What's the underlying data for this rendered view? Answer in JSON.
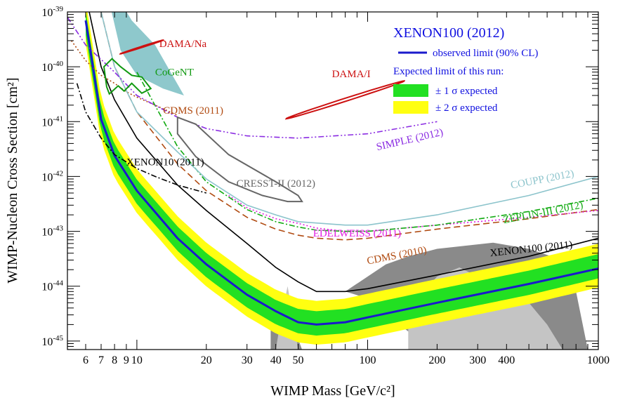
{
  "chart_data": {
    "type": "line",
    "title": "",
    "xlabel": "WIMP Mass [GeV/c²]",
    "ylabel": "WIMP-Nucleon Cross Section [cm²]",
    "xscale": "log",
    "yscale": "log",
    "xlim": [
      5,
      1000
    ],
    "ylim": [
      7e-46,
      1e-39
    ],
    "x_tick_labels": [
      {
        "x": 6,
        "label": "6"
      },
      {
        "x": 7,
        "label": "7"
      },
      {
        "x": 8,
        "label": "8"
      },
      {
        "x": 9,
        "label": "9"
      },
      {
        "x": 10,
        "label": "10"
      },
      {
        "x": 20,
        "label": "20"
      },
      {
        "x": 30,
        "label": "30"
      },
      {
        "x": 40,
        "label": "40"
      },
      {
        "x": 50,
        "label": "50"
      },
      {
        "x": 100,
        "label": "100"
      },
      {
        "x": 200,
        "label": "200"
      },
      {
        "x": 300,
        "label": "300"
      },
      {
        "x": 400,
        "label": "400"
      },
      {
        "x": 1000,
        "label": "1000"
      }
    ],
    "y_tick_exponents": [
      -45,
      -44,
      -43,
      -42,
      -41,
      -40,
      -39
    ],
    "legend": {
      "position": "top-right",
      "title": "XENON100 (2012)",
      "observed_label": "observed limit (90% CL)",
      "expected_header": "Expected limit of this run:",
      "one_sigma_label": "± 1 σ expected",
      "two_sigma_label": "± 2 σ expected"
    },
    "colors": {
      "observed": "#1a1acc",
      "one_sigma": "#22e022",
      "two_sigma": "#ffff11",
      "dama": "#cc1111",
      "cogent": "#119911",
      "cogent_fill": "#8ec8cc",
      "cdms": "#b04a10",
      "simple": "#8a2be2",
      "xenon10": "#000000",
      "cresst": "#666666",
      "coupp": "#8cc4cc",
      "zeplin": "#11aa11",
      "edelweiss": "#e020e0",
      "xenon100_2011": "#000000",
      "theory_dark": "#8a8a8a",
      "theory_light": "#c4c4c4"
    },
    "series": [
      {
        "name": "XENON100 (2012)",
        "style": "solid-thick",
        "color_key": "observed",
        "points": [
          [
            6,
            7e-40
          ],
          [
            7,
            1.1e-41
          ],
          [
            8,
            2.4e-42
          ],
          [
            10,
            5.5e-43
          ],
          [
            15,
            7.5e-44
          ],
          [
            20,
            2.5e-44
          ],
          [
            30,
            7e-45
          ],
          [
            40,
            3.5e-45
          ],
          [
            50,
            2.2e-45
          ],
          [
            60,
            2e-45
          ],
          [
            80,
            2.2e-45
          ],
          [
            100,
            2.7e-45
          ],
          [
            200,
            5e-45
          ],
          [
            500,
            1.1e-44
          ],
          [
            1000,
            2.1e-44
          ]
        ]
      },
      {
        "name": "XENON100 (2011)",
        "style": "solid",
        "color_key": "xenon100_2011",
        "points": [
          [
            6,
            2e-39
          ],
          [
            7,
            1e-40
          ],
          [
            8,
            2.5e-41
          ],
          [
            10,
            5e-42
          ],
          [
            15,
            7e-43
          ],
          [
            20,
            2.4e-43
          ],
          [
            30,
            6e-44
          ],
          [
            40,
            2.2e-44
          ],
          [
            50,
            1.2e-44
          ],
          [
            60,
            8e-45
          ],
          [
            80,
            8e-45
          ],
          [
            100,
            9e-45
          ],
          [
            200,
            1.6e-44
          ],
          [
            500,
            3.5e-44
          ],
          [
            1000,
            7.5e-44
          ]
        ]
      },
      {
        "name": "CDMS (2010)",
        "style": "dash",
        "color_key": "cdms",
        "points": [
          [
            7,
            1e-39
          ],
          [
            8,
            1e-40
          ],
          [
            10,
            1.5e-41
          ],
          [
            15,
            1.7e-42
          ],
          [
            20,
            5.5e-43
          ],
          [
            30,
            1.8e-43
          ],
          [
            40,
            1.1e-43
          ],
          [
            50,
            8.5e-44
          ],
          [
            60,
            7.5e-44
          ],
          [
            80,
            7e-44
          ],
          [
            100,
            7.5e-44
          ],
          [
            200,
            1.1e-43
          ],
          [
            500,
            1.7e-43
          ],
          [
            1000,
            2.5e-43
          ]
        ]
      },
      {
        "name": "CDMS (2011)",
        "style": "dot",
        "color_key": "cdms",
        "points": [
          [
            5.2,
            3e-40
          ],
          [
            6,
            1.3e-40
          ],
          [
            7,
            7e-41
          ],
          [
            8,
            5e-41
          ],
          [
            9,
            3.5e-41
          ],
          [
            10,
            2.8e-41
          ],
          [
            12,
            2e-41
          ],
          [
            15,
            1.3e-41
          ]
        ]
      },
      {
        "name": "EDELWEISS (2011)",
        "style": "dot",
        "color_key": "edelweiss",
        "points": [
          [
            25,
            4.5e-43
          ],
          [
            30,
            2.7e-43
          ],
          [
            40,
            1.7e-43
          ],
          [
            50,
            1.4e-43
          ],
          [
            60,
            1.15e-43
          ],
          [
            80,
            1e-43
          ],
          [
            100,
            1e-43
          ],
          [
            200,
            1.3e-43
          ],
          [
            500,
            1.8e-43
          ],
          [
            1000,
            2.4e-43
          ]
        ]
      },
      {
        "name": "ZEPLIN-III (2012)",
        "style": "dashdot",
        "color_key": "zeplin",
        "points": [
          [
            10,
            8e-41
          ],
          [
            15,
            3.5e-42
          ],
          [
            20,
            8e-43
          ],
          [
            30,
            2.5e-43
          ],
          [
            40,
            1.5e-43
          ],
          [
            50,
            1.2e-43
          ],
          [
            60,
            1.05e-43
          ],
          [
            80,
            1e-43
          ],
          [
            100,
            1e-43
          ],
          [
            200,
            1.3e-43
          ],
          [
            500,
            2.3e-43
          ],
          [
            1000,
            4e-43
          ]
        ]
      },
      {
        "name": "COUPP (2012)",
        "style": "solid",
        "color_key": "coupp",
        "points": [
          [
            7,
            1e-39
          ],
          [
            8,
            1e-40
          ],
          [
            10,
            1.5e-41
          ],
          [
            15,
            2.8e-42
          ],
          [
            20,
            9e-43
          ],
          [
            30,
            3e-43
          ],
          [
            40,
            2e-43
          ],
          [
            50,
            1.5e-43
          ],
          [
            80,
            1.3e-43
          ],
          [
            100,
            1.3e-43
          ],
          [
            200,
            2e-43
          ],
          [
            500,
            4.5e-43
          ],
          [
            1000,
            1e-42
          ]
        ]
      },
      {
        "name": "SIMPLE (2012)",
        "style": "dashdotdot",
        "color_key": "simple",
        "points": [
          [
            5,
            8e-40
          ],
          [
            6,
            2.5e-40
          ],
          [
            8,
            8e-41
          ],
          [
            10,
            3e-41
          ],
          [
            15,
            1.2e-41
          ],
          [
            20,
            7.5e-42
          ],
          [
            30,
            5.5e-42
          ],
          [
            50,
            5e-42
          ],
          [
            100,
            6e-42
          ],
          [
            200,
            1e-41
          ]
        ]
      },
      {
        "name": "XENON10 (2011)",
        "style": "dashdot",
        "color_key": "xenon10",
        "points": [
          [
            5.5,
            5e-41
          ],
          [
            6,
            1.5e-41
          ],
          [
            7,
            5e-42
          ],
          [
            8,
            2.5e-42
          ],
          [
            10,
            1.4e-42
          ],
          [
            12,
            1e-42
          ],
          [
            15,
            7e-43
          ],
          [
            20,
            5e-43
          ]
        ]
      }
    ],
    "expected_band_center": [
      [
        6,
        6e-40
      ],
      [
        7,
        1e-41
      ],
      [
        8,
        2.2e-42
      ],
      [
        10,
        5e-43
      ],
      [
        15,
        7e-44
      ],
      [
        20,
        2.3e-44
      ],
      [
        30,
        6.5e-45
      ],
      [
        40,
        3.2e-45
      ],
      [
        50,
        2.2e-45
      ],
      [
        60,
        2e-45
      ],
      [
        80,
        2.2e-45
      ],
      [
        100,
        2.7e-45
      ],
      [
        200,
        5e-45
      ],
      [
        500,
        1.1e-44
      ],
      [
        1000,
        2.2e-44
      ]
    ],
    "regions": [
      {
        "name": "DAMA/Na",
        "color_key": "dama",
        "center": [
          10.5,
          2.3e-40
        ],
        "half_width_decades": [
          0.08,
          0.2
        ]
      },
      {
        "name": "DAMA/I",
        "color_key": "dama",
        "center": [
          80,
          2.5e-41
        ],
        "half_width_decades": [
          0.22,
          0.55
        ]
      },
      {
        "name": "CoGeNT",
        "color_key": "cogent",
        "outline": [
          [
            7.2,
            1e-40
          ],
          [
            7.8,
            1.4e-40
          ],
          [
            8.5,
            1e-40
          ],
          [
            9.5,
            7e-41
          ],
          [
            10.5,
            6.5e-41
          ],
          [
            11.5,
            4e-41
          ],
          [
            10.5,
            3.3e-41
          ],
          [
            9.5,
            5e-41
          ],
          [
            8.8,
            3.6e-41
          ],
          [
            8.3,
            4.5e-41
          ],
          [
            7.6,
            3.2e-41
          ],
          [
            7.4,
            4.3e-41
          ]
        ]
      },
      {
        "name": "CRESST-II (2012)",
        "color_key": "cresst",
        "outline": [
          [
            15,
            1.2e-41
          ],
          [
            18,
            9e-42
          ],
          [
            25,
            2.5e-42
          ],
          [
            40,
            8e-43
          ],
          [
            50,
            4.5e-43
          ],
          [
            52,
            3.5e-43
          ],
          [
            45,
            3.5e-43
          ],
          [
            35,
            4.5e-43
          ],
          [
            25,
            8e-43
          ],
          [
            18,
            2.3e-42
          ],
          [
            15,
            6e-42
          ]
        ]
      }
    ],
    "cogent_fill": [
      [
        7.6,
        1.5e-39
      ],
      [
        8.5,
        1.5e-39
      ],
      [
        9.5,
        7e-40
      ],
      [
        12,
        2.5e-40
      ],
      [
        14,
        8e-41
      ],
      [
        16,
        3e-41
      ],
      [
        13,
        4e-41
      ],
      [
        10,
        7e-41
      ],
      [
        8.5,
        2e-40
      ]
    ],
    "theory_regions": [
      {
        "tone": "theory_dark",
        "outline": [
          [
            38,
            7e-46
          ],
          [
            38,
            1.7e-45
          ],
          [
            42,
            6e-45
          ],
          [
            45,
            5e-45
          ],
          [
            48,
            1.7e-45
          ],
          [
            52,
            7e-46
          ]
        ]
      },
      {
        "tone": "theory_dark",
        "outline": [
          [
            80,
            8e-45
          ],
          [
            100,
            1.5e-44
          ],
          [
            120,
            2.5e-44
          ],
          [
            150,
            3.5e-44
          ],
          [
            200,
            4.8e-44
          ],
          [
            350,
            6.2e-44
          ],
          [
            500,
            4.8e-44
          ],
          [
            700,
            3e-44
          ],
          [
            800,
            8e-45
          ],
          [
            900,
            7e-46
          ],
          [
            200,
            7e-46
          ],
          [
            150,
            1.5e-45
          ],
          [
            120,
            3e-45
          ],
          [
            100,
            6e-45
          ]
        ]
      },
      {
        "tone": "theory_light",
        "outline": [
          [
            42,
            2.4e-45
          ],
          [
            45,
            1e-44
          ],
          [
            48,
            2.2e-45
          ],
          [
            50,
            7e-46
          ],
          [
            40,
            7e-46
          ]
        ]
      },
      {
        "tone": "theory_light",
        "outline": [
          [
            150,
            7e-46
          ],
          [
            150,
            4e-45
          ],
          [
            200,
            1.5e-44
          ],
          [
            250,
            2.2e-44
          ],
          [
            300,
            1.5e-44
          ],
          [
            400,
            1e-44
          ],
          [
            500,
            5e-45
          ],
          [
            600,
            2e-45
          ],
          [
            700,
            7e-46
          ]
        ]
      }
    ],
    "labels": [
      {
        "text": "DAMA/Na",
        "x": 12.5,
        "y": 2.3e-40,
        "color_key": "dama",
        "rotate": 0
      },
      {
        "text": "CoGeNT",
        "x": 12,
        "y": 7e-41,
        "color_key": "cogent",
        "rotate": 0
      },
      {
        "text": "DAMA/I",
        "x": 70,
        "y": 6.5e-41,
        "color_key": "dama",
        "rotate": 0
      },
      {
        "text": "CDMS (2011)",
        "x": 13,
        "y": 1.4e-41,
        "color_key": "cdms",
        "rotate": 0
      },
      {
        "text": "SIMPLE (2012)",
        "x": 110,
        "y": 3e-42,
        "color_key": "simple",
        "rotate": -13
      },
      {
        "text": "XENON10 (2011)",
        "x": 9,
        "y": 1.6e-42,
        "color_key": "xenon10",
        "rotate": 0
      },
      {
        "text": "CRESST-II (2012)",
        "x": 27,
        "y": 6.5e-43,
        "color_key": "cresst",
        "rotate": 0
      },
      {
        "text": "COUPP (2012)",
        "x": 420,
        "y": 6e-43,
        "color_key": "coupp",
        "rotate": -11
      },
      {
        "text": "ZEPLIN-III (2012)",
        "x": 390,
        "y": 1.4e-43,
        "color_key": "zeplin",
        "rotate": -11
      },
      {
        "text": "EDELWEISS (2011)",
        "x": 58,
        "y": 8e-44,
        "color_key": "edelweiss",
        "rotate": 0
      },
      {
        "text": "CDMS (2010)",
        "x": 100,
        "y": 2.5e-44,
        "color_key": "cdms",
        "rotate": -11
      },
      {
        "text": "XENON100 (2011)",
        "x": 340,
        "y": 3.5e-44,
        "color_key": "xenon100_2011",
        "rotate": -6
      }
    ]
  }
}
